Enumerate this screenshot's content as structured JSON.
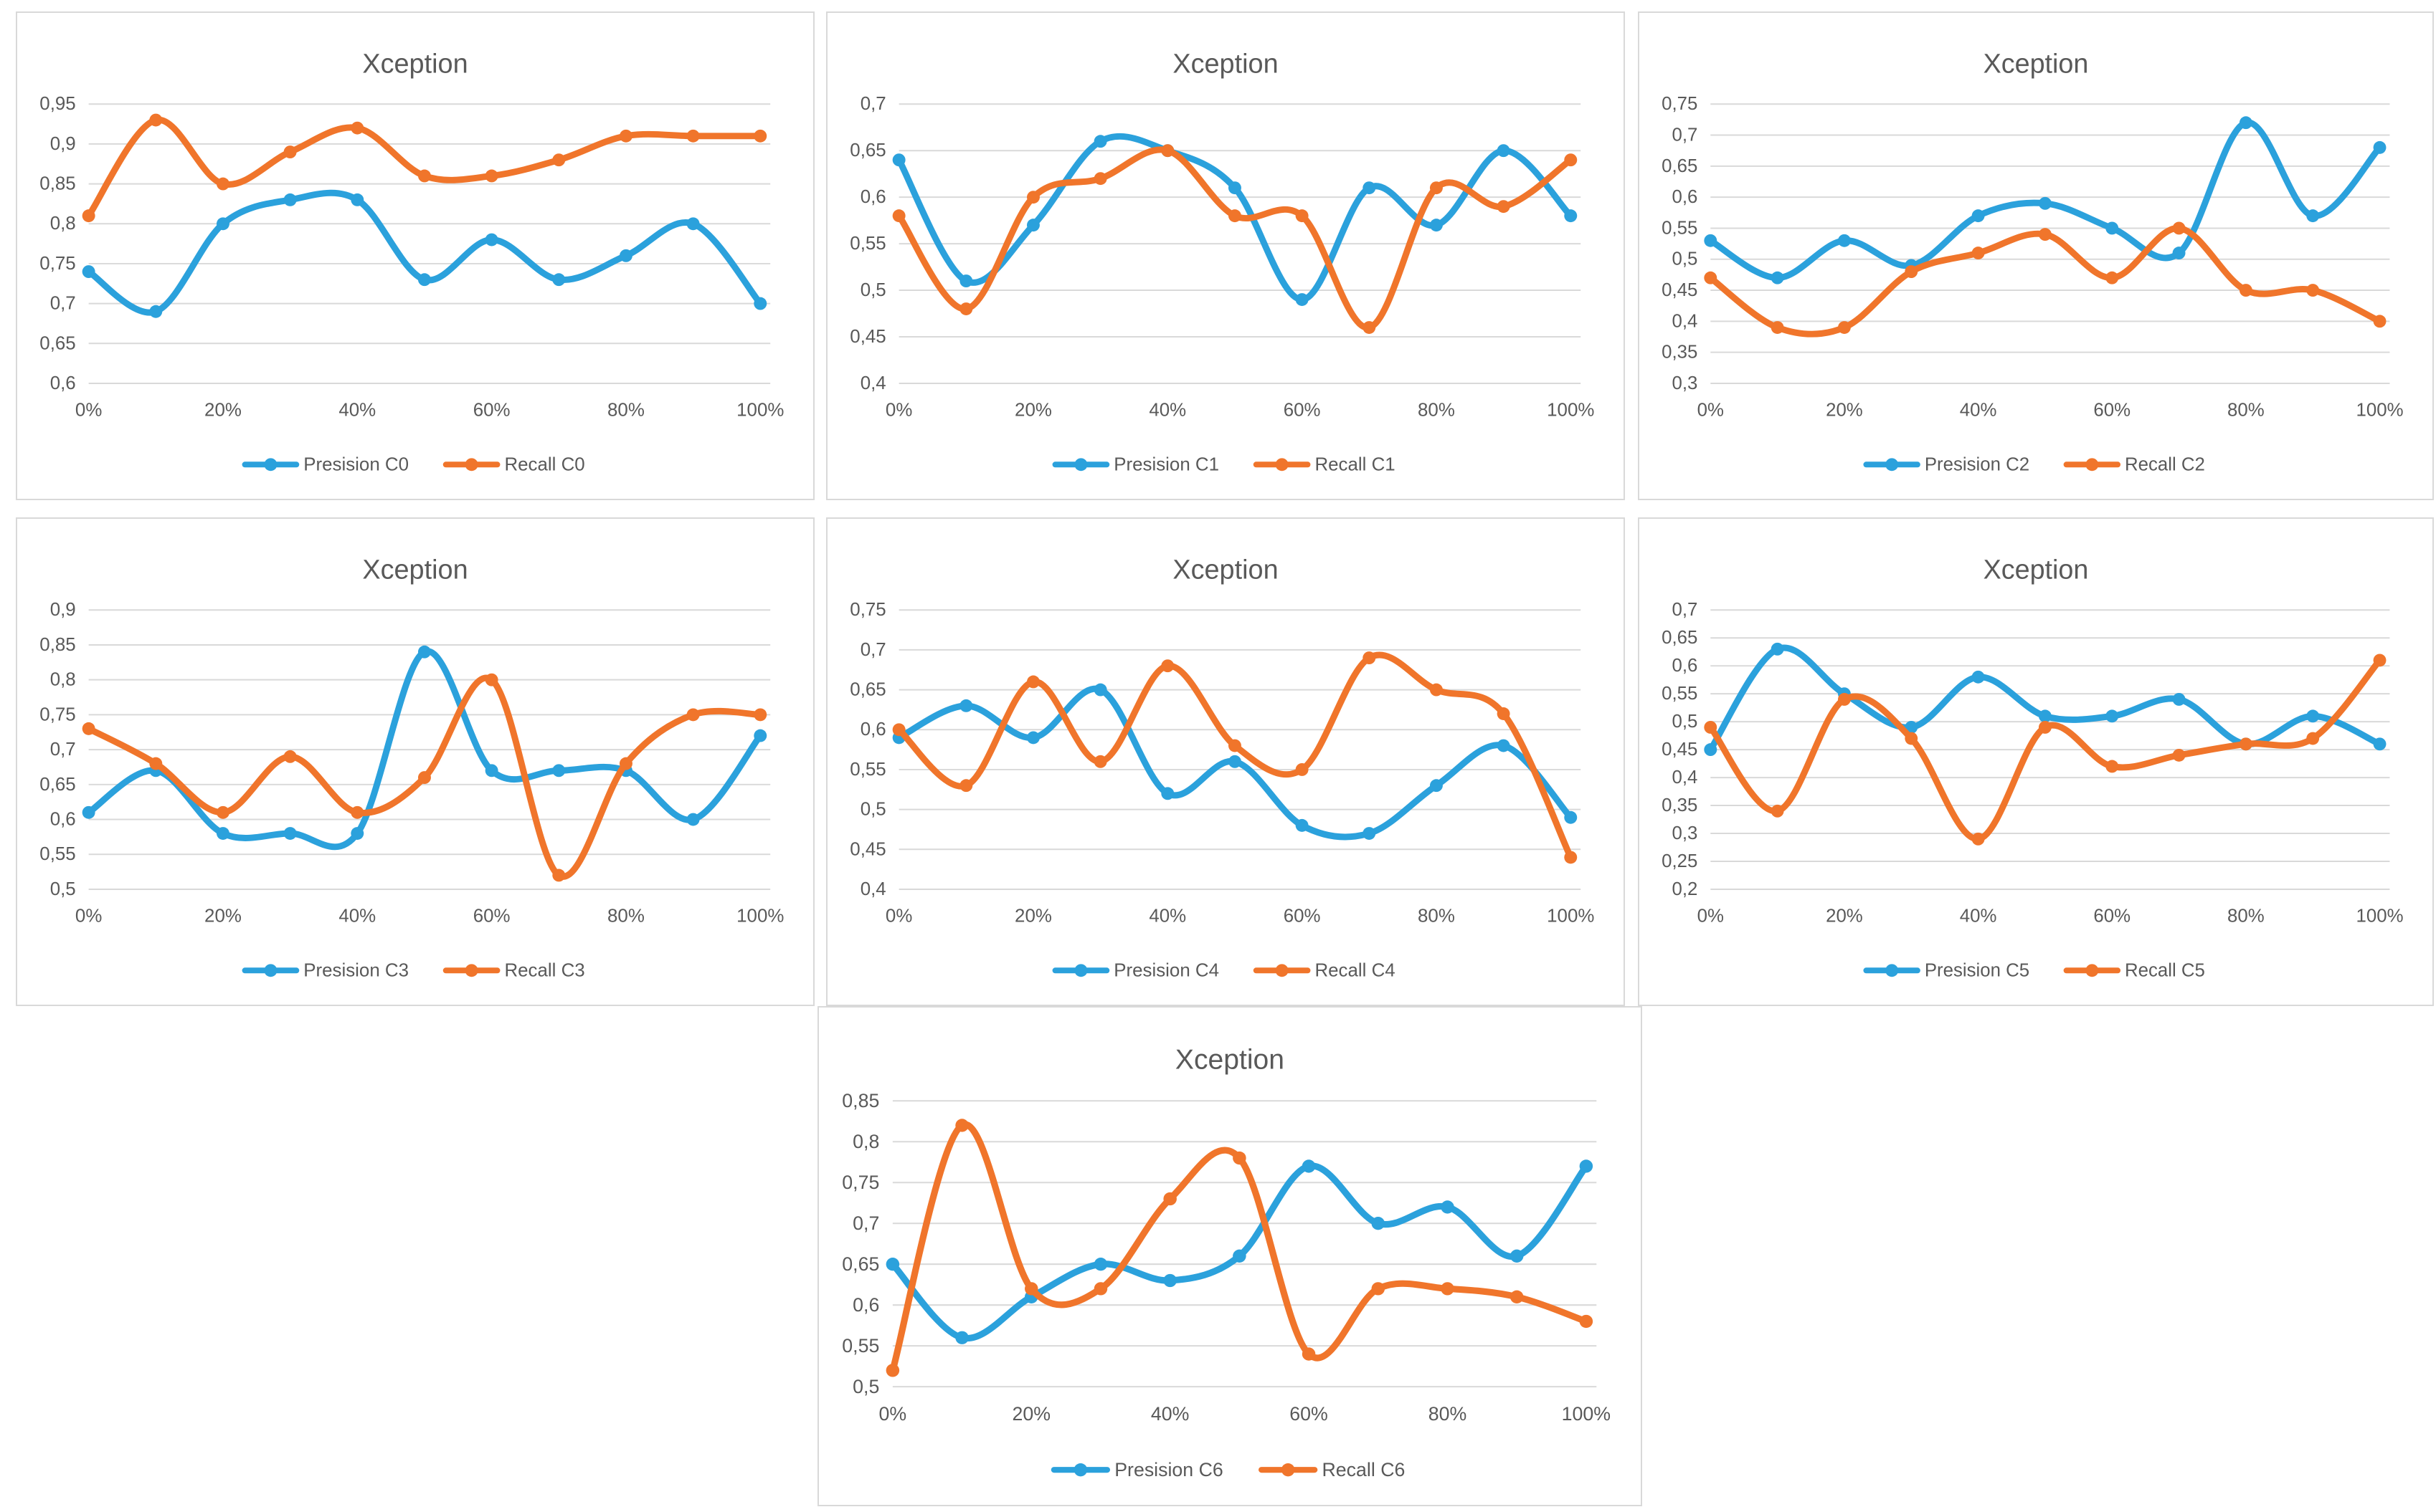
{
  "page": {
    "background": "#ffffff",
    "decimal_separator": ","
  },
  "colors": {
    "precision": "#2BA1DC",
    "recall": "#F0752B",
    "title_text": "#595959",
    "axis_text": "#595959",
    "legend_text": "#595959",
    "gridline": "#d9d9d9",
    "panel_border": "#d9d9d9",
    "panel_background": "#ffffff"
  },
  "x_labeled_every": 2,
  "chart_data": [
    {
      "type": "line",
      "title": "Xception",
      "xlabel": "",
      "ylabel": "",
      "grid": true,
      "smooth": true,
      "legend_position": "bottom",
      "categories": [
        "0%",
        "10%",
        "20%",
        "30%",
        "40%",
        "50%",
        "60%",
        "70%",
        "80%",
        "90%",
        "100%"
      ],
      "ylim": [
        0.6,
        0.95
      ],
      "ytick_step": 0.05,
      "series": [
        {
          "name": "Presision C0",
          "role": "precision",
          "values": [
            0.74,
            0.69,
            0.8,
            0.83,
            0.83,
            0.73,
            0.78,
            0.73,
            0.76,
            0.8,
            0.7
          ]
        },
        {
          "name": "Recall C0",
          "role": "recall",
          "values": [
            0.81,
            0.93,
            0.85,
            0.89,
            0.92,
            0.86,
            0.86,
            0.88,
            0.91,
            0.91,
            0.91
          ]
        }
      ]
    },
    {
      "type": "line",
      "title": "Xception",
      "xlabel": "",
      "ylabel": "",
      "grid": true,
      "smooth": true,
      "legend_position": "bottom",
      "categories": [
        "0%",
        "10%",
        "20%",
        "30%",
        "40%",
        "50%",
        "60%",
        "70%",
        "80%",
        "90%",
        "100%"
      ],
      "ylim": [
        0.4,
        0.7
      ],
      "ytick_step": 0.05,
      "series": [
        {
          "name": "Presision C1",
          "role": "precision",
          "values": [
            0.64,
            0.51,
            0.57,
            0.66,
            0.65,
            0.61,
            0.49,
            0.61,
            0.57,
            0.65,
            0.58
          ]
        },
        {
          "name": "Recall C1",
          "role": "recall",
          "values": [
            0.58,
            0.48,
            0.6,
            0.62,
            0.65,
            0.58,
            0.58,
            0.46,
            0.61,
            0.59,
            0.64
          ]
        }
      ]
    },
    {
      "type": "line",
      "title": "Xception",
      "xlabel": "",
      "ylabel": "",
      "grid": true,
      "smooth": true,
      "legend_position": "bottom",
      "categories": [
        "0%",
        "10%",
        "20%",
        "30%",
        "40%",
        "50%",
        "60%",
        "70%",
        "80%",
        "90%",
        "100%"
      ],
      "ylim": [
        0.3,
        0.75
      ],
      "ytick_step": 0.05,
      "series": [
        {
          "name": "Presision C2",
          "role": "precision",
          "values": [
            0.53,
            0.47,
            0.53,
            0.49,
            0.57,
            0.59,
            0.55,
            0.51,
            0.72,
            0.57,
            0.68
          ]
        },
        {
          "name": "Recall C2",
          "role": "recall",
          "values": [
            0.47,
            0.39,
            0.39,
            0.48,
            0.51,
            0.54,
            0.47,
            0.55,
            0.45,
            0.45,
            0.4
          ]
        }
      ]
    },
    {
      "type": "line",
      "title": "Xception",
      "xlabel": "",
      "ylabel": "",
      "grid": true,
      "smooth": true,
      "legend_position": "bottom",
      "categories": [
        "0%",
        "10%",
        "20%",
        "30%",
        "40%",
        "50%",
        "60%",
        "70%",
        "80%",
        "90%",
        "100%"
      ],
      "ylim": [
        0.5,
        0.9
      ],
      "ytick_step": 0.05,
      "series": [
        {
          "name": "Presision C3",
          "role": "precision",
          "values": [
            0.61,
            0.67,
            0.58,
            0.58,
            0.58,
            0.84,
            0.67,
            0.67,
            0.67,
            0.6,
            0.72
          ]
        },
        {
          "name": "Recall C3",
          "role": "recall",
          "values": [
            0.73,
            0.68,
            0.61,
            0.69,
            0.61,
            0.66,
            0.8,
            0.52,
            0.68,
            0.75,
            0.75
          ]
        }
      ]
    },
    {
      "type": "line",
      "title": "Xception",
      "xlabel": "",
      "ylabel": "",
      "grid": true,
      "smooth": true,
      "legend_position": "bottom",
      "categories": [
        "0%",
        "10%",
        "20%",
        "30%",
        "40%",
        "50%",
        "60%",
        "70%",
        "80%",
        "90%",
        "100%"
      ],
      "ylim": [
        0.4,
        0.75
      ],
      "ytick_step": 0.05,
      "series": [
        {
          "name": "Presision C4",
          "role": "precision",
          "values": [
            0.59,
            0.63,
            0.59,
            0.65,
            0.52,
            0.56,
            0.48,
            0.47,
            0.53,
            0.58,
            0.49
          ]
        },
        {
          "name": "Recall C4",
          "role": "recall",
          "values": [
            0.6,
            0.53,
            0.66,
            0.56,
            0.68,
            0.58,
            0.55,
            0.69,
            0.65,
            0.62,
            0.44
          ]
        }
      ]
    },
    {
      "type": "line",
      "title": "Xception",
      "xlabel": "",
      "ylabel": "",
      "grid": true,
      "smooth": true,
      "legend_position": "bottom",
      "categories": [
        "0%",
        "10%",
        "20%",
        "30%",
        "40%",
        "50%",
        "60%",
        "70%",
        "80%",
        "90%",
        "100%"
      ],
      "ylim": [
        0.2,
        0.7
      ],
      "ytick_step": 0.05,
      "series": [
        {
          "name": "Presision C5",
          "role": "precision",
          "values": [
            0.45,
            0.63,
            0.55,
            0.49,
            0.58,
            0.51,
            0.51,
            0.54,
            0.46,
            0.51,
            0.46
          ]
        },
        {
          "name": "Recall C5",
          "role": "recall",
          "values": [
            0.49,
            0.34,
            0.54,
            0.47,
            0.29,
            0.49,
            0.42,
            0.44,
            0.46,
            0.47,
            0.61
          ]
        }
      ]
    },
    {
      "type": "line",
      "title": "Xception",
      "xlabel": "",
      "ylabel": "",
      "grid": true,
      "smooth": true,
      "legend_position": "bottom",
      "categories": [
        "0%",
        "10%",
        "20%",
        "30%",
        "40%",
        "50%",
        "60%",
        "70%",
        "80%",
        "90%",
        "100%"
      ],
      "ylim": [
        0.5,
        0.85
      ],
      "ytick_step": 0.05,
      "series": [
        {
          "name": "Presision C6",
          "role": "precision",
          "values": [
            0.65,
            0.56,
            0.61,
            0.65,
            0.63,
            0.66,
            0.77,
            0.7,
            0.72,
            0.66,
            0.77
          ]
        },
        {
          "name": "Recall C6",
          "role": "recall",
          "values": [
            0.52,
            0.82,
            0.62,
            0.62,
            0.73,
            0.78,
            0.54,
            0.62,
            0.62,
            0.61,
            0.58
          ]
        }
      ]
    }
  ]
}
